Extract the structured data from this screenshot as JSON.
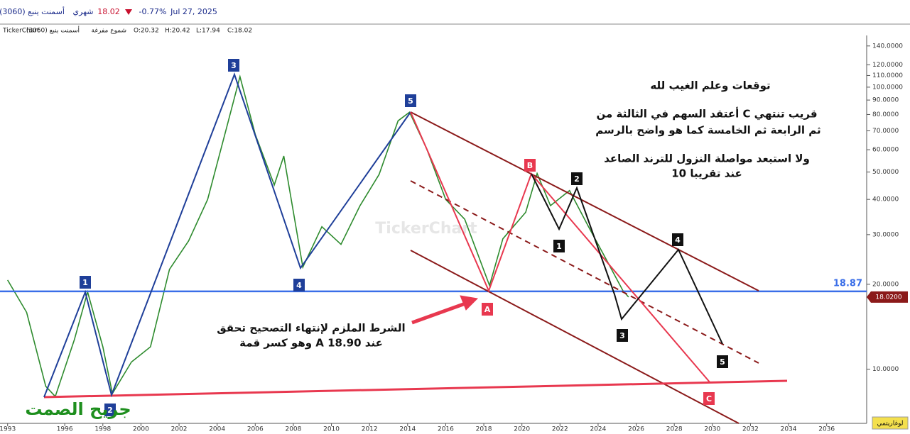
{
  "header": {
    "date": "Jul 27, 2025",
    "change": "-0.77%",
    "price": "18.02",
    "period": "شهري",
    "symbol": "(3060) أسمنت ينبع"
  },
  "info_line": {
    "source": "TickerChart",
    "style": "شموع مفرغة",
    "symbol": "(3060) أسمنت ينبع",
    "ohlc": [
      "O:20.32",
      "H:20.42",
      "L:17.94",
      "C:18.02"
    ]
  },
  "chart_data": {
    "type": "line",
    "log_scale": true,
    "color": "#2e8b2e",
    "x": [
      1993.0,
      1994.0,
      1995.0,
      1995.5,
      1996.5,
      1997.2,
      1998.0,
      1998.5,
      1999.5,
      2000.5,
      2001.5,
      2002.5,
      2003.5,
      2004.5,
      2005.2,
      2006.0,
      2007.0,
      2007.5,
      2008.5,
      2009.5,
      2010.5,
      2011.5,
      2012.5,
      2013.5,
      2014.1,
      2015.0,
      2016.0,
      2017.0,
      2018.3,
      2019.0,
      2020.2,
      2020.8,
      2021.5,
      2022.5,
      2023.5,
      2024.5,
      2025.3,
      2025.6
    ],
    "values": [
      20.7,
      15.9,
      8.7,
      8.0,
      12.7,
      18.8,
      12,
      8.2,
      10.6,
      12,
      22.6,
      28.5,
      40,
      72,
      109,
      68,
      45,
      57,
      23,
      32,
      27.7,
      38,
      49,
      76,
      81.5,
      60.5,
      40,
      34,
      19.8,
      29,
      36,
      49.4,
      38,
      43,
      32,
      24,
      19,
      18.02
    ],
    "xlim": [
      1992.6,
      2038.1
    ],
    "xticks": [
      1993,
      1996,
      1998,
      2000,
      2002,
      2004,
      2006,
      2008,
      2010,
      2012,
      2014,
      2016,
      2018,
      2020,
      2022,
      2024,
      2026,
      2028,
      2030,
      2032,
      2034,
      2036
    ],
    "ylim": [
      6.5,
      157
    ],
    "yticks": [
      {
        "value": 10,
        "label": "10.0000"
      },
      {
        "value": 20,
        "label": "20.0000"
      },
      {
        "value": 30,
        "label": "30.0000"
      },
      {
        "value": 40,
        "label": "40.0000"
      },
      {
        "value": 50,
        "label": "50.0000"
      },
      {
        "value": 60,
        "label": "60.0000"
      },
      {
        "value": 70,
        "label": "70.0000"
      },
      {
        "value": 80,
        "label": "80.0000"
      },
      {
        "value": 90,
        "label": "90.0000"
      },
      {
        "value": 100,
        "label": "100.0000"
      },
      {
        "value": 110,
        "label": "110.0000"
      },
      {
        "value": 120,
        "label": "120.0000"
      },
      {
        "value": 140,
        "label": "140.0000"
      }
    ],
    "hline": 18.87,
    "last_price": {
      "value": 18.02,
      "label": "18.0200"
    },
    "scale_button": "لوغاريتمي",
    "watermark": "TickerChart",
    "signature": "جريح الصمت",
    "wave_labels": [
      {
        "text": "1",
        "color": "#1f3f99"
      },
      {
        "text": "2",
        "color": "#1f3f99"
      },
      {
        "text": "3",
        "color": "#1f3f99"
      },
      {
        "text": "4",
        "color": "#1f3f99"
      },
      {
        "text": "5",
        "color": "#1f3f99"
      },
      {
        "text": "A",
        "color": "#e8384f"
      },
      {
        "text": "B",
        "color": "#e8384f"
      },
      {
        "text": "C",
        "color": "#e8384f"
      },
      {
        "text": "1",
        "color": "#111111"
      },
      {
        "text": "2",
        "color": "#111111"
      },
      {
        "text": "3",
        "color": "#111111"
      },
      {
        "text": "4",
        "color": "#111111"
      },
      {
        "text": "5",
        "color": "#111111"
      }
    ],
    "annotations": [
      "توقعات وعلم الغيب لله",
      "أعتقد السهم في الثالثة من C قريب تنتهي",
      "ثم الرابعة ثم الخامسة كما هو واضح بالرسم",
      "ولا استبعد مواصلة النزول للترند الصاعد",
      "عند تقريبا 10",
      "الشرط الملزم لإنتهاء التصحيح تحقق",
      "وهو كسر قمة A  عند 18.90"
    ]
  }
}
